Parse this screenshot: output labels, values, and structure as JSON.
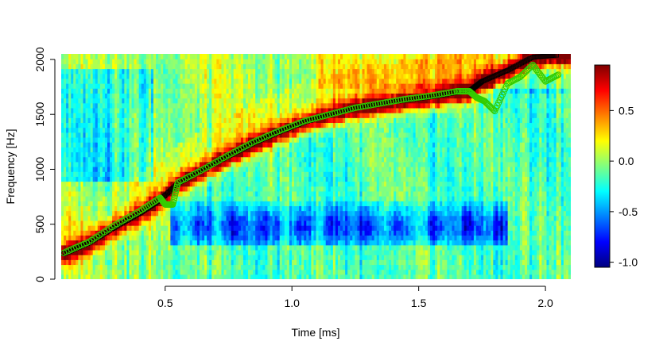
{
  "chart_data": {
    "type": "heatmap",
    "title": "",
    "xlabel": "Time [ms]",
    "ylabel": "Frequency [Hz]",
    "xlim": [
      0.09,
      2.1
    ],
    "ylim": [
      0,
      2050
    ],
    "x_ticks": [
      0.5,
      1.0,
      1.5,
      2.0
    ],
    "x_tick_labels": [
      "0.5",
      "1.0",
      "1.5",
      "2.0"
    ],
    "y_ticks": [
      0,
      500,
      1000,
      1500,
      2000
    ],
    "y_tick_labels": [
      "0",
      "500",
      "1000",
      "1500",
      "2000"
    ],
    "colorbar": {
      "range": [
        -1.05,
        0.95
      ],
      "ticks": [
        0.5,
        0.0,
        -0.5,
        -1.0
      ],
      "tick_labels": [
        "0.5",
        "0.0",
        "-0.5",
        "-1.0"
      ],
      "colormap": "jet",
      "colors": [
        "#00007f",
        "#0000ff",
        "#0080ff",
        "#00ffff",
        "#80ff80",
        "#ffff00",
        "#ff8000",
        "#ff0000",
        "#7f0000"
      ]
    },
    "ridge_black": {
      "marker": "open-square",
      "color": "#000000",
      "x": [
        0.1,
        0.2,
        0.3,
        0.4,
        0.48,
        0.55,
        0.65,
        0.75,
        0.85,
        0.95,
        1.05,
        1.15,
        1.25,
        1.35,
        1.45,
        1.55,
        1.65,
        1.7,
        1.75,
        1.85,
        1.95,
        2.05
      ],
      "y": [
        230,
        330,
        470,
        600,
        720,
        870,
        1000,
        1120,
        1240,
        1340,
        1430,
        1500,
        1560,
        1600,
        1630,
        1660,
        1700,
        1710,
        1800,
        1900,
        2020,
        2040
      ]
    },
    "ridge_green": {
      "marker": "open-circle",
      "color": "#33cc00",
      "x": [
        0.1,
        0.2,
        0.3,
        0.4,
        0.48,
        0.5,
        0.53,
        0.55,
        0.65,
        0.75,
        0.85,
        0.95,
        1.05,
        1.15,
        1.25,
        1.35,
        1.45,
        1.55,
        1.65,
        1.7,
        1.73,
        1.76,
        1.8,
        1.85,
        1.9,
        1.95,
        2.0,
        2.05
      ],
      "y": [
        240,
        340,
        490,
        620,
        740,
        680,
        680,
        880,
        1000,
        1130,
        1250,
        1350,
        1440,
        1500,
        1560,
        1600,
        1640,
        1670,
        1710,
        1710,
        1650,
        1620,
        1530,
        1780,
        1840,
        1950,
        1800,
        1860
      ]
    }
  }
}
